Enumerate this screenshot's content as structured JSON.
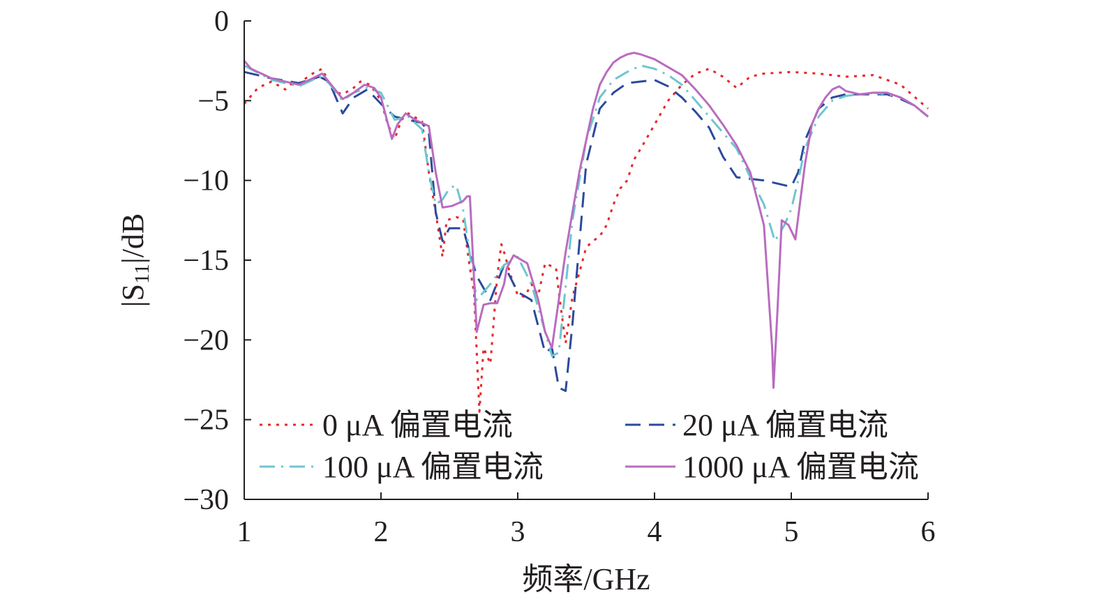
{
  "chart_data": {
    "type": "line",
    "xlabel": "频率/GHz",
    "ylabel": "|S11|/dB",
    "ylabel_parts": {
      "prefix": "|S",
      "subscript": "11",
      "suffix": "|/dB"
    },
    "xlim": [
      1,
      6
    ],
    "ylim": [
      -30,
      0
    ],
    "x_ticks": [
      1,
      2,
      3,
      4,
      5,
      6
    ],
    "y_ticks": [
      0,
      -5,
      -10,
      -15,
      -20,
      -25,
      -30
    ],
    "x_tick_labels": [
      "1",
      "2",
      "3",
      "4",
      "5",
      "6"
    ],
    "y_tick_labels": [
      "0",
      "−5",
      "−10",
      "−15",
      "−20",
      "−25",
      "−30"
    ],
    "grid": false,
    "legend_position": "bottom",
    "series": [
      {
        "name": "0 μA 偏置电流",
        "color": "#e8262a",
        "dash": "dotted",
        "x": [
          1.0,
          1.1,
          1.2,
          1.3,
          1.35,
          1.4,
          1.45,
          1.5,
          1.57,
          1.65,
          1.72,
          1.8,
          1.85,
          1.92,
          2.0,
          2.05,
          2.1,
          2.15,
          2.2,
          2.3,
          2.35,
          2.4,
          2.45,
          2.48,
          2.55,
          2.6,
          2.65,
          2.68,
          2.72,
          2.75,
          2.8,
          2.85,
          2.88,
          2.9,
          2.95,
          3.0,
          3.05,
          3.1,
          3.15,
          3.2,
          3.28,
          3.3,
          3.35,
          3.4,
          3.45,
          3.5,
          3.55,
          3.6,
          3.65,
          3.7,
          3.75,
          3.8,
          3.85,
          3.9,
          4.0,
          4.1,
          4.2,
          4.3,
          4.4,
          4.5,
          4.6,
          4.7,
          4.8,
          5.0,
          5.2,
          5.4,
          5.6,
          5.8,
          6.0
        ],
        "values": [
          -5.2,
          -4.2,
          -3.8,
          -4.3,
          -3.9,
          -3.9,
          -3.6,
          -3.3,
          -3.0,
          -4.4,
          -4.6,
          -4.2,
          -3.8,
          -4.0,
          -5.0,
          -6.5,
          -7.4,
          -6.2,
          -5.8,
          -6.3,
          -9.5,
          -12.0,
          -14.8,
          -12.5,
          -12.3,
          -12.4,
          -15.5,
          -17.0,
          -24.5,
          -20.5,
          -21.5,
          -16.0,
          -14.0,
          -14.5,
          -16.0,
          -17.2,
          -17.3,
          -16.5,
          -17.2,
          -15.2,
          -15.5,
          -17.0,
          -20.2,
          -17.3,
          -15.8,
          -14.2,
          -13.8,
          -13.5,
          -12.8,
          -11.5,
          -10.5,
          -10.0,
          -8.7,
          -8.0,
          -6.5,
          -5.0,
          -4.0,
          -3.3,
          -3.0,
          -3.5,
          -4.2,
          -3.5,
          -3.3,
          -3.2,
          -3.3,
          -3.5,
          -3.4,
          -4.0,
          -5.5
        ]
      },
      {
        "name": "20 μA 偏置电流",
        "color": "#2b4a9b",
        "dash": "dashed",
        "x": [
          1.0,
          1.2,
          1.4,
          1.55,
          1.62,
          1.72,
          1.8,
          1.9,
          2.0,
          2.1,
          2.2,
          2.3,
          2.35,
          2.4,
          2.45,
          2.5,
          2.6,
          2.7,
          2.8,
          2.9,
          3.0,
          3.1,
          3.2,
          3.25,
          3.3,
          3.35,
          3.4,
          3.5,
          3.6,
          3.7,
          3.8,
          4.0,
          4.1,
          4.2,
          4.3,
          4.4,
          4.5,
          4.6,
          4.8,
          5.0,
          5.05,
          5.1,
          5.2,
          5.3,
          5.4,
          5.5,
          5.6,
          5.7,
          5.8,
          5.9,
          6.0
        ],
        "values": [
          -3.2,
          -3.6,
          -3.9,
          -3.5,
          -3.8,
          -5.8,
          -4.8,
          -4.3,
          -5.2,
          -6.0,
          -6.2,
          -6.4,
          -7.0,
          -12.0,
          -13.8,
          -13.0,
          -13.0,
          -16.0,
          -17.5,
          -15.3,
          -17.0,
          -17.5,
          -20.8,
          -20.5,
          -23.0,
          -23.2,
          -19.0,
          -9.0,
          -5.5,
          -4.5,
          -3.9,
          -3.7,
          -4.1,
          -4.8,
          -5.7,
          -6.7,
          -8.5,
          -9.8,
          -10.0,
          -10.4,
          -9.5,
          -7.5,
          -5.5,
          -4.8,
          -4.6,
          -4.6,
          -4.6,
          -4.6,
          -4.9,
          -5.3,
          -6.0
        ]
      },
      {
        "name": "100 μA 偏置电流",
        "color": "#6dc6cf",
        "dash": "dashdot",
        "x": [
          1.0,
          1.2,
          1.4,
          1.55,
          1.62,
          1.72,
          1.8,
          1.9,
          2.0,
          2.1,
          2.2,
          2.3,
          2.35,
          2.4,
          2.45,
          2.5,
          2.55,
          2.6,
          2.7,
          2.8,
          2.9,
          3.0,
          3.1,
          3.2,
          3.25,
          3.3,
          3.4,
          3.5,
          3.6,
          3.7,
          3.8,
          3.9,
          4.0,
          4.1,
          4.2,
          4.3,
          4.4,
          4.5,
          4.6,
          4.7,
          4.8,
          4.88,
          4.95,
          5.0,
          5.05,
          5.1,
          5.2,
          5.3,
          5.4,
          5.5,
          5.6,
          5.7,
          5.8,
          5.9,
          6.0
        ],
        "values": [
          -2.8,
          -3.7,
          -4.1,
          -3.5,
          -3.9,
          -5.0,
          -4.5,
          -4.2,
          -4.5,
          -6.2,
          -6.0,
          -6.8,
          -9.5,
          -11.5,
          -11.2,
          -10.5,
          -10.3,
          -11.8,
          -17.5,
          -16.5,
          -15.3,
          -14.8,
          -16.5,
          -19.5,
          -21.0,
          -20.8,
          -12.5,
          -7.5,
          -4.8,
          -3.7,
          -3.2,
          -2.8,
          -3.0,
          -3.4,
          -4.0,
          -5.0,
          -6.0,
          -7.0,
          -8.0,
          -9.8,
          -11.5,
          -13.8,
          -12.8,
          -11.8,
          -10.0,
          -8.0,
          -6.0,
          -5.0,
          -4.7,
          -4.6,
          -4.5,
          -4.6,
          -4.8,
          -5.3,
          -6.0
        ]
      },
      {
        "name": "1000 μA 偏置电流",
        "color": "#b96cbf",
        "dash": "solid",
        "x": [
          1.0,
          1.05,
          1.2,
          1.3,
          1.4,
          1.5,
          1.57,
          1.72,
          1.8,
          1.88,
          1.95,
          2.0,
          2.08,
          2.12,
          2.18,
          2.25,
          2.35,
          2.4,
          2.45,
          2.52,
          2.6,
          2.63,
          2.65,
          2.7,
          2.75,
          2.8,
          2.85,
          2.9,
          2.92,
          2.97,
          3.07,
          3.15,
          3.2,
          3.25,
          3.3,
          3.35,
          3.4,
          3.45,
          3.5,
          3.55,
          3.6,
          3.65,
          3.7,
          3.75,
          3.8,
          3.85,
          3.9,
          4.0,
          4.1,
          4.2,
          4.3,
          4.4,
          4.5,
          4.6,
          4.7,
          4.8,
          4.86,
          4.87,
          4.9,
          4.93,
          4.98,
          5.03,
          5.07,
          5.1,
          5.15,
          5.2,
          5.25,
          5.3,
          5.35,
          5.4,
          5.5,
          5.6,
          5.7,
          5.8,
          5.9,
          6.0
        ],
        "values": [
          -2.5,
          -3.0,
          -3.6,
          -3.8,
          -4.0,
          -3.6,
          -3.3,
          -4.9,
          -4.5,
          -4.0,
          -4.2,
          -4.8,
          -7.4,
          -6.5,
          -5.8,
          -6.2,
          -6.6,
          -9.5,
          -11.7,
          -11.6,
          -11.3,
          -11.0,
          -11.0,
          -19.5,
          -17.8,
          -17.7,
          -17.7,
          -16.5,
          -15.5,
          -14.7,
          -15.2,
          -17.5,
          -19.5,
          -20.5,
          -17.5,
          -14.5,
          -12.0,
          -9.5,
          -7.5,
          -5.5,
          -4.0,
          -3.2,
          -2.6,
          -2.3,
          -2.1,
          -2.0,
          -2.1,
          -2.4,
          -2.9,
          -3.4,
          -4.3,
          -5.3,
          -6.5,
          -7.8,
          -9.5,
          -12.8,
          -20.5,
          -23.0,
          -18.0,
          -12.5,
          -12.8,
          -13.7,
          -11.0,
          -9.0,
          -6.5,
          -5.5,
          -4.8,
          -4.3,
          -4.1,
          -4.4,
          -4.6,
          -4.5,
          -4.5,
          -4.8,
          -5.3,
          -6.0
        ]
      }
    ]
  }
}
